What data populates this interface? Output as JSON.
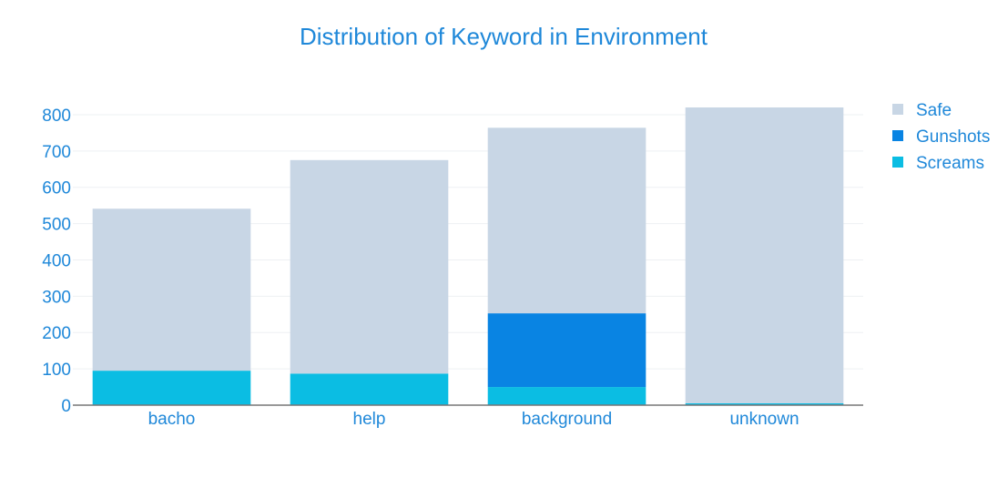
{
  "colors": {
    "text": "#1f88d9",
    "grid": "#eef0f3",
    "axis": "#777777",
    "background": "#ffffff"
  },
  "chart_data": {
    "type": "bar",
    "stacked": true,
    "title": "Distribution of Keyword in Environment",
    "xlabel": "",
    "ylabel": "",
    "categories": [
      "bacho",
      "help",
      "background",
      "unknown"
    ],
    "series": [
      {
        "name": "Screams",
        "color": "#0bbde3",
        "values": [
          95,
          87,
          50,
          5
        ]
      },
      {
        "name": "Gunshots",
        "color": "#0984e3",
        "values": [
          0,
          0,
          203,
          0
        ]
      },
      {
        "name": "Safe",
        "color": "#c8d6e5",
        "values": [
          446,
          588,
          511,
          815
        ]
      }
    ],
    "ylim": [
      0,
      820
    ],
    "yticks": [
      0,
      100,
      200,
      300,
      400,
      500,
      600,
      700,
      800
    ],
    "grid": true,
    "legend": {
      "position": "top-right",
      "order": [
        "Safe",
        "Gunshots",
        "Screams"
      ]
    }
  }
}
